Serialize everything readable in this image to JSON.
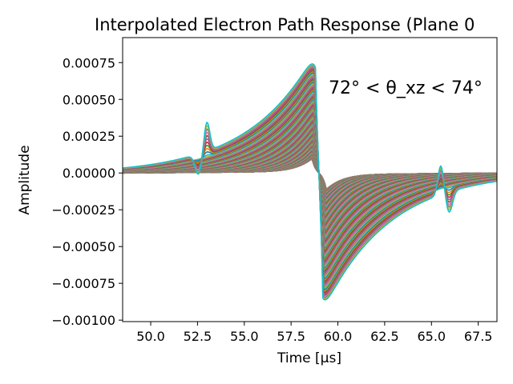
{
  "chart_data": {
    "type": "line",
    "title": "Interpolated Electron Path Response (Plane 0",
    "xlabel": "Time [μs]",
    "ylabel": "Amplitude",
    "annotation": "72° < θ_xz < 74°",
    "xlim": [
      48.5,
      68.5
    ],
    "ylim": [
      -0.00101,
      0.00092
    ],
    "xticks": [
      50.0,
      52.5,
      55.0,
      57.5,
      60.0,
      62.5,
      65.0,
      67.5
    ],
    "xtick_labels": [
      "50.0",
      "52.5",
      "55.0",
      "57.5",
      "60.0",
      "62.5",
      "65.0",
      "67.5"
    ],
    "yticks": [
      0.00075,
      0.0005,
      0.00025,
      0.0,
      -0.00025,
      -0.0005,
      -0.00075,
      -0.001
    ],
    "ytick_labels": [
      "0.00075",
      "0.00050",
      "0.00025",
      "0.00000",
      "−0.00025",
      "−0.00050",
      "−0.00075",
      "−0.00100"
    ],
    "grid": false,
    "legend": "none",
    "n_series": 150,
    "series_family": {
      "description": "many overlapping bipolar response waveforms shifted in time",
      "peak_positive_max": 0.00082,
      "peak_positive_time": 58.8,
      "peak_negative_min": -0.00094,
      "peak_negative_time": 59.2,
      "side_lobe_left_time": 53.0,
      "side_lobe_left_amplitude": 0.0002,
      "side_lobe_right_time": 65.5,
      "side_lobe_right_amplitude": 0.0002
    },
    "colors": [
      "#1f77b4",
      "#ff7f0e",
      "#2ca02c",
      "#d62728",
      "#9467bd",
      "#8c564b",
      "#e377c2",
      "#7f7f7f",
      "#bcbd22",
      "#17becf"
    ]
  }
}
